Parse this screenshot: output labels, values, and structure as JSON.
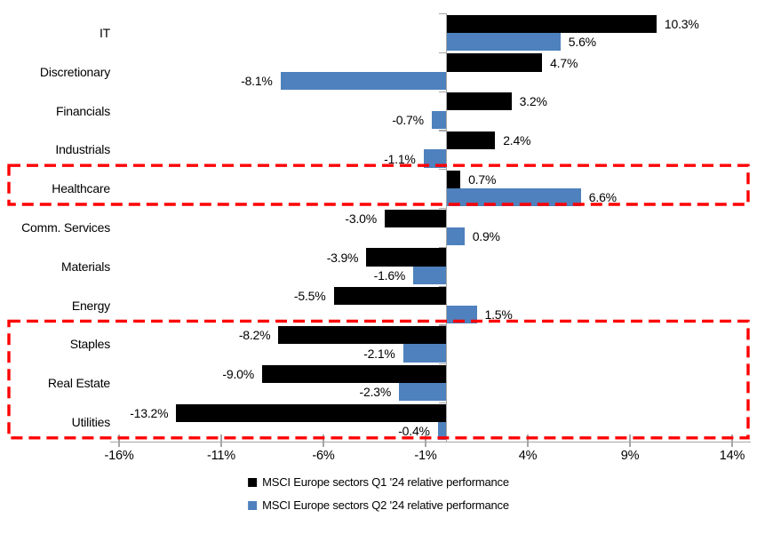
{
  "chart_data": {
    "type": "bar",
    "orientation": "horizontal",
    "title": "",
    "categories": [
      "IT",
      "Discretionary",
      "Financials",
      "Industrials",
      "Healthcare",
      "Comm. Services",
      "Materials",
      "Energy",
      "Staples",
      "Real Estate",
      "Utilities"
    ],
    "series": [
      {
        "name": "MSCI Europe sectors Q1 '24 relative performance",
        "color": "#000000",
        "values": [
          10.3,
          4.7,
          3.2,
          2.4,
          0.7,
          -3.0,
          -3.9,
          -5.5,
          -8.2,
          -9.0,
          -13.2
        ],
        "labels": [
          "10.3%",
          "4.7%",
          "3.2%",
          "2.4%",
          "0.7%",
          "-3.0%",
          "-3.9%",
          "-5.5%",
          "-8.2%",
          "-9.0%",
          "-13.2%"
        ]
      },
      {
        "name": "MSCI Europe sectors Q2 '24 relative performance",
        "color": "#4E81BD",
        "values": [
          5.6,
          -8.1,
          -0.7,
          -1.1,
          6.6,
          0.9,
          -1.6,
          1.5,
          -2.1,
          -2.3,
          -0.4
        ],
        "labels": [
          "5.6%",
          "-8.1%",
          "-0.7%",
          "-1.1%",
          "6.6%",
          "0.9%",
          "-1.6%",
          "1.5%",
          "-2.1%",
          "-2.3%",
          "-0.4%"
        ]
      }
    ],
    "x_axis": {
      "min": -16,
      "max": 14,
      "ticks": [
        -16,
        -11,
        -6,
        -1,
        4,
        9,
        14
      ],
      "tick_labels": [
        "-16%",
        "-11%",
        "-6%",
        "-1%",
        "4%",
        "9%",
        "14%"
      ]
    },
    "legend_position": "bottom",
    "grid": false,
    "highlights": [
      {
        "name": "healthcare-highlight",
        "from_category": "Healthcare",
        "to_category": "Healthcare",
        "color": "#FF0000"
      },
      {
        "name": "defensives-highlight",
        "from_category": "Staples",
        "to_category": "Utilities",
        "color": "#FF0000"
      }
    ]
  },
  "colors": {
    "q1_bar": "#000000",
    "q2_bar": "#4E81BD",
    "axis": "#A6A6A6",
    "highlight": "#FF0000",
    "background": "#FFFFFF"
  }
}
